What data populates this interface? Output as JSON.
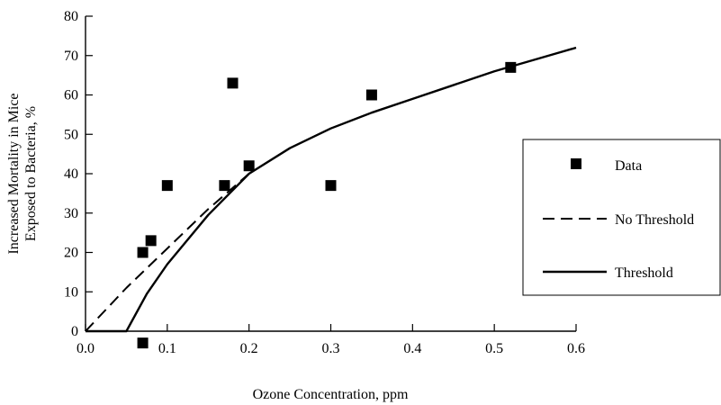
{
  "chart_data": {
    "type": "scatter",
    "xlabel": "Ozone Concentration, ppm",
    "ylabel_lines": [
      "Increased Mortality in Mice",
      "Exposed to Bacteria, %"
    ],
    "xlim": [
      0.0,
      0.6
    ],
    "ylim": [
      0,
      80
    ],
    "x_ticks": [
      "0.0",
      "0.1",
      "0.2",
      "0.3",
      "0.4",
      "0.5",
      "0.6"
    ],
    "y_ticks": [
      "0",
      "10",
      "20",
      "30",
      "40",
      "50",
      "60",
      "70",
      "80"
    ],
    "grid": false,
    "legend_position": "right",
    "series": [
      {
        "name": "Data",
        "kind": "points",
        "color": "#000000",
        "x": [
          0.07,
          0.07,
          0.08,
          0.1,
          0.17,
          0.18,
          0.2,
          0.3,
          0.35,
          0.52
        ],
        "y": [
          -3,
          20,
          23,
          37,
          37,
          63,
          42,
          37,
          60,
          67
        ]
      },
      {
        "name": "No Threshold",
        "kind": "dashed-line",
        "color": "#000000",
        "x": [
          0.0,
          0.05,
          0.1,
          0.15,
          0.2
        ],
        "y": [
          0,
          11,
          21,
          31,
          40
        ]
      },
      {
        "name": "Threshold",
        "kind": "solid-line",
        "color": "#000000",
        "x": [
          0.0,
          0.05,
          0.075,
          0.1,
          0.15,
          0.2,
          0.25,
          0.3,
          0.35,
          0.4,
          0.45,
          0.5,
          0.55,
          0.6
        ],
        "y": [
          0,
          0,
          9.5,
          17,
          29.5,
          40,
          46.5,
          51.5,
          55.5,
          59,
          62.5,
          66,
          69,
          72
        ]
      }
    ]
  }
}
